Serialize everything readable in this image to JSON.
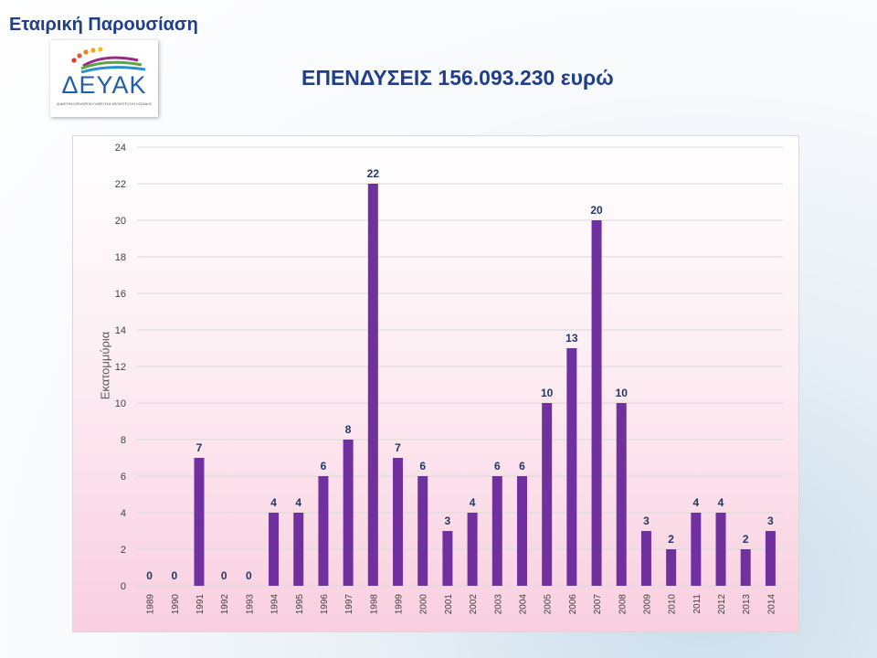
{
  "header": {
    "title": "Εταιρική Παρουσίαση"
  },
  "logo": {
    "text": "ΔΕΥΑΚ",
    "subtitle": "ΔΗΜΟΤΙΚΗ ΕΠΙΧΕΙΡΗΣΗ ΥΔΡΕΥΣΗΣ ΑΠΟΧΕΤΕΥΣΗΣ ΚΟΖΑΝΗΣ"
  },
  "main_title": "ΕΠΕΝΔΥΣΕΙΣ 156.093.230 ευρώ",
  "colors": {
    "bar": "#7030a0",
    "label": "#1f3864",
    "title": "#1f3f8a"
  },
  "chart_data": {
    "type": "bar",
    "title": "",
    "xlabel": "",
    "ylabel": "Εκατομμύρια",
    "categories": [
      "1989",
      "1990",
      "1991",
      "1992",
      "1993",
      "1994",
      "1995",
      "1996",
      "1997",
      "1998",
      "1999",
      "2000",
      "2001",
      "2002",
      "2003",
      "2004",
      "2005",
      "2006",
      "2007",
      "2008",
      "2009",
      "2010",
      "2011",
      "2012",
      "2013",
      "2014"
    ],
    "values": [
      0,
      0,
      7,
      0,
      0,
      4,
      4,
      6,
      8,
      22,
      7,
      6,
      3,
      4,
      6,
      6,
      10,
      13,
      20,
      10,
      3,
      2,
      4,
      4,
      2,
      3
    ],
    "ylim": [
      0,
      24
    ],
    "yticks": [
      0,
      2,
      4,
      6,
      8,
      10,
      12,
      14,
      16,
      18,
      20,
      22,
      24
    ],
    "grid": true,
    "data_labels": true
  }
}
